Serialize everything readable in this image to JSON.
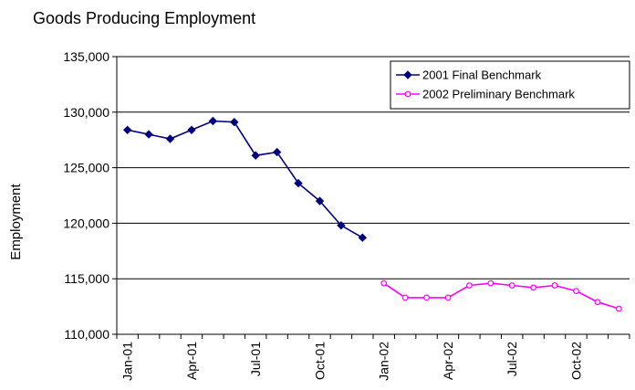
{
  "chart_data": {
    "type": "line",
    "title": "Goods Producing Employment",
    "xlabel": "",
    "ylabel": "Employment",
    "ylim": [
      110000,
      135000
    ],
    "yticks": [
      110000,
      115000,
      120000,
      125000,
      130000,
      135000
    ],
    "ytick_labels": [
      "110,000",
      "115,000",
      "120,000",
      "125,000",
      "130,000",
      "135,000"
    ],
    "categories": [
      "Jan-01",
      "Feb-01",
      "Mar-01",
      "Apr-01",
      "May-01",
      "Jun-01",
      "Jul-01",
      "Aug-01",
      "Sep-01",
      "Oct-01",
      "Nov-01",
      "Dec-01",
      "Jan-02",
      "Feb-02",
      "Mar-02",
      "Apr-02",
      "May-02",
      "Jun-02",
      "Jul-02",
      "Aug-02",
      "Sep-02",
      "Oct-02",
      "Nov-02",
      "Dec-02"
    ],
    "xtick_labels": [
      {
        "index": 0,
        "label": "Jan-01"
      },
      {
        "index": 3,
        "label": "Apr-01"
      },
      {
        "index": 6,
        "label": "Jul-01"
      },
      {
        "index": 9,
        "label": "Oct-01"
      },
      {
        "index": 12,
        "label": "Jan-02"
      },
      {
        "index": 15,
        "label": "Apr-02"
      },
      {
        "index": 18,
        "label": "Jul-02"
      },
      {
        "index": 21,
        "label": "Oct-02"
      }
    ],
    "grid": true,
    "legend_position": "top-right",
    "series": [
      {
        "name": "2001 Final Benchmark",
        "color": "#000080",
        "marker": "diamond",
        "values": [
          128400,
          128000,
          127600,
          128400,
          129200,
          129100,
          126100,
          126400,
          123600,
          122000,
          119800,
          118700,
          null,
          null,
          null,
          null,
          null,
          null,
          null,
          null,
          null,
          null,
          null,
          null
        ]
      },
      {
        "name": "2002 Preliminary Benchmark",
        "color": "#ff00ff",
        "marker": "circle",
        "values": [
          null,
          null,
          null,
          null,
          null,
          null,
          null,
          null,
          null,
          null,
          null,
          null,
          114600,
          113300,
          113300,
          113300,
          114400,
          114600,
          114400,
          114200,
          114400,
          113900,
          112900,
          112300
        ]
      }
    ]
  }
}
